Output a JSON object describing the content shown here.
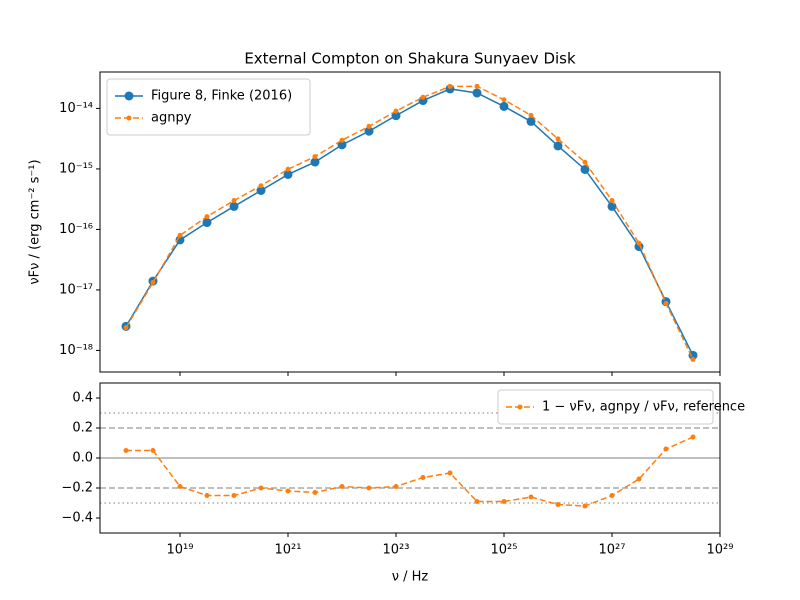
{
  "chart_data": [
    {
      "type": "line",
      "title": "External Compton on Shakura Sunyaev Disk",
      "y_label": "νFν / (erg cm⁻² s⁻¹)",
      "xscale": "log",
      "yscale": "log",
      "x": [
        1e+18,
        3.162e+18,
        1e+19,
        3.162e+19,
        1e+20,
        3.162e+20,
        1e+21,
        3.162e+21,
        1e+22,
        3.162e+22,
        1e+23,
        3.162e+23,
        1e+24,
        3.162e+24,
        1e+25,
        3.162e+25,
        1e+26,
        3.162e+26,
        1e+27,
        3.162e+27,
        1e+28,
        3.162e+28
      ],
      "series": [
        {
          "name": "Figure 8, Finke (2016)",
          "color": "#1f77b4",
          "linestyle": "solid",
          "marker": "large",
          "values": [
            2.5e-18,
            1.4e-17,
            6.7e-17,
            1.3e-16,
            2.4e-16,
            4.4e-16,
            8.1e-16,
            1.3e-15,
            2.5e-15,
            4.2e-15,
            7.6e-15,
            1.35e-14,
            2.1e-14,
            1.8e-14,
            1.08e-14,
            6.1e-15,
            2.4e-15,
            9.8e-16,
            2.4e-16,
            5.2e-17,
            6.4e-18,
            8.3e-19
          ]
        },
        {
          "name": "agnpy",
          "color": "#ff7f0e",
          "linestyle": "dashed",
          "marker": "small",
          "values": [
            2.38e-18,
            1.33e-17,
            7.97e-17,
            1.63e-16,
            3e-16,
            5.28e-16,
            9.88e-16,
            1.6e-15,
            2.98e-15,
            5.04e-15,
            9.04e-15,
            1.53e-14,
            2.31e-14,
            2.32e-14,
            1.39e-14,
            7.69e-15,
            3.14e-15,
            1.29e-15,
            3e-16,
            5.93e-17,
            6e-18,
            7.1e-19
          ]
        }
      ],
      "xlim": [
        3.3e+17,
        1e+29
      ],
      "xticks": [
        1e+19,
        1e+21,
        1e+23,
        1e+25,
        1e+27,
        1e+29
      ],
      "ylim": [
        4.4e-19,
        4e-14
      ],
      "yticks": [
        {
          "value": 1e-18,
          "label": "10⁻¹⁸"
        },
        {
          "value": 1e-17,
          "label": "10⁻¹⁷"
        },
        {
          "value": 1e-16,
          "label": "10⁻¹⁶"
        },
        {
          "value": 1e-15,
          "label": "10⁻¹⁵"
        },
        {
          "value": 1e-14,
          "label": "10⁻¹⁴"
        }
      ],
      "legend": "upper left"
    },
    {
      "type": "line",
      "x_label": "ν / Hz",
      "xscale": "log",
      "yscale": "linear",
      "x": [
        1e+18,
        3.162e+18,
        1e+19,
        3.162e+19,
        1e+20,
        3.162e+20,
        1e+21,
        3.162e+21,
        1e+22,
        3.162e+22,
        1e+23,
        3.162e+23,
        1e+24,
        3.162e+24,
        1e+25,
        3.162e+25,
        1e+26,
        3.162e+26,
        1e+27,
        3.162e+27,
        1e+28,
        3.162e+28
      ],
      "series": [
        {
          "name": "1 − νFν, agnpy / νFν, reference",
          "color": "#ff7f0e",
          "linestyle": "dashed",
          "marker": "small",
          "values": [
            0.05,
            0.05,
            -0.19,
            -0.25,
            -0.25,
            -0.2,
            -0.22,
            -0.23,
            -0.19,
            -0.2,
            -0.19,
            -0.13,
            -0.1,
            -0.29,
            -0.29,
            -0.26,
            -0.31,
            -0.32,
            -0.25,
            -0.14,
            0.06,
            0.14
          ]
        }
      ],
      "reference_lines": [
        {
          "value": 0,
          "style": "solid"
        },
        {
          "value": 0.2,
          "style": "dashed"
        },
        {
          "value": -0.2,
          "style": "dashed"
        },
        {
          "value": 0.3,
          "style": "dotted"
        },
        {
          "value": -0.3,
          "style": "dotted"
        }
      ],
      "xlim": [
        3.3e+17,
        1e+29
      ],
      "xticks": [
        {
          "value": 1e+19,
          "label": "10¹⁹"
        },
        {
          "value": 1e+21,
          "label": "10²¹"
        },
        {
          "value": 1e+23,
          "label": "10²³"
        },
        {
          "value": 1e+25,
          "label": "10²⁵"
        },
        {
          "value": 1e+27,
          "label": "10²⁷"
        },
        {
          "value": 1e+29,
          "label": "10²⁹"
        }
      ],
      "ylim": [
        -0.5,
        0.5
      ],
      "yticks": [
        {
          "value": -0.4,
          "label": "−0.4"
        },
        {
          "value": -0.2,
          "label": "−0.2"
        },
        {
          "value": 0,
          "label": "0.0"
        },
        {
          "value": 0.2,
          "label": "0.2"
        },
        {
          "value": 0.4,
          "label": "0.4"
        }
      ],
      "legend": "upper right"
    }
  ]
}
